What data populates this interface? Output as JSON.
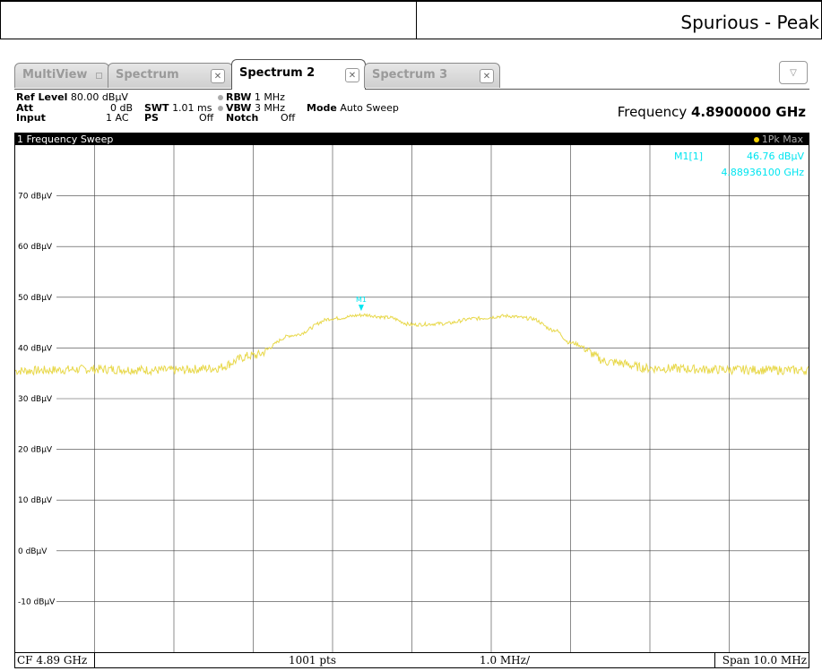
{
  "header": {
    "title": "Spurious - Peak"
  },
  "tabs": [
    {
      "label": "MultiView",
      "active": false
    },
    {
      "label": "Spectrum",
      "active": false
    },
    {
      "label": "Spectrum 2",
      "active": true
    },
    {
      "label": "Spectrum 3",
      "active": false
    }
  ],
  "dropdown_icon": "chevron-down",
  "settings": {
    "ref_level_label": "Ref Level",
    "ref_level_value": "80.00 dBµV",
    "att_label": "Att",
    "att_value": "0 dB",
    "swt_label": "SWT",
    "swt_value": "1.01 ms",
    "input_label": "Input",
    "input_value": "1 AC",
    "ps_label": "PS",
    "ps_value": "Off",
    "rbw_label": "RBW",
    "rbw_value": "1 MHz",
    "vbw_label": "VBW",
    "vbw_value": "3 MHz",
    "notch_label": "Notch",
    "notch_value": "Off",
    "mode_label": "Mode",
    "mode_value": "Auto Sweep",
    "frequency_label": "Frequency",
    "frequency_value": "4.8900000 GHz"
  },
  "plot": {
    "title": "1 Frequency Sweep",
    "trace_label": "1Pk Max",
    "marker_name": "M1[1]",
    "marker_level": "46.76 dBµV",
    "marker_freq": "4.88936100 GHz",
    "marker_tag": "M1"
  },
  "footer": {
    "cf": "CF 4.89 GHz",
    "pts": "1001 pts",
    "div": "1.0 MHz/",
    "span": "Span 10.0 MHz"
  },
  "colors": {
    "trace": "#e8d84a",
    "marker": "#00e5f0",
    "grid": "#404040"
  },
  "chart_data": {
    "type": "line",
    "title": "1 Frequency Sweep",
    "xlabel": "",
    "ylabel": "",
    "xlim": [
      4.885,
      4.895
    ],
    "ylim": [
      -20,
      80
    ],
    "y_ticks": [
      "70 dBµV",
      "60 dBµV",
      "50 dBµV",
      "40 dBµV",
      "30 dBµV",
      "20 dBµV",
      "10 dBµV",
      "0 dBµV",
      "-10 dBµV"
    ],
    "grid": true,
    "series": [
      {
        "name": "1Pk Max",
        "x": [
          4.885,
          4.886,
          4.887,
          4.8875,
          4.888,
          4.8885,
          4.889,
          4.8894,
          4.8897,
          4.89,
          4.8904,
          4.8908,
          4.8912,
          4.8915,
          4.8918,
          4.892,
          4.8925,
          4.893,
          4.894,
          4.895
        ],
        "y": [
          35.5,
          35.8,
          35.6,
          36.0,
          38.5,
          42.5,
          45.8,
          46.5,
          46.0,
          44.6,
          44.8,
          45.8,
          46.3,
          45.8,
          43.5,
          41.0,
          37.2,
          36.0,
          35.7,
          35.6
        ]
      }
    ],
    "markers": [
      {
        "name": "M1",
        "x": 4.889361,
        "y": 46.76
      }
    ]
  }
}
